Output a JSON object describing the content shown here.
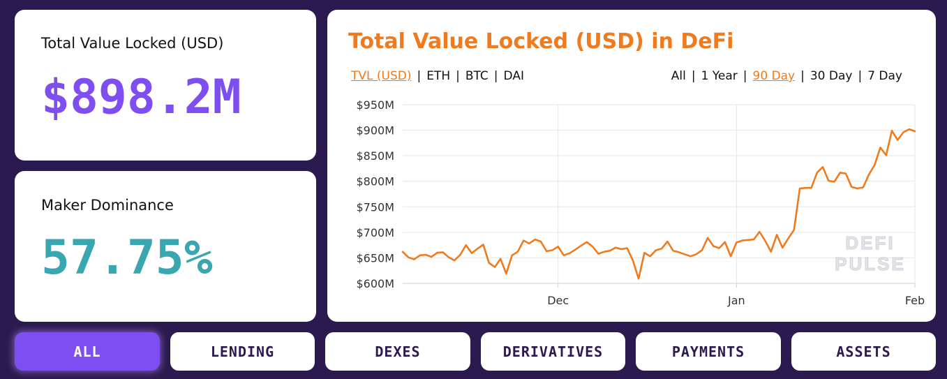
{
  "stats": {
    "tvl_label": "Total Value Locked (USD)",
    "tvl_value": "$898.2M",
    "tvl_color": "#7f4ef0",
    "dominance_label": "Maker Dominance",
    "dominance_value": "57.75%",
    "dominance_color": "#3aa6b0"
  },
  "chart_panel": {
    "title": "Total Value Locked (USD) in DeFi",
    "accent_color": "#f07b1f",
    "metric_tabs": [
      {
        "label": "TVL (USD)",
        "active": true
      },
      {
        "label": "ETH",
        "active": false
      },
      {
        "label": "BTC",
        "active": false
      },
      {
        "label": "DAI",
        "active": false
      }
    ],
    "range_tabs": [
      {
        "label": "All",
        "active": false
      },
      {
        "label": "1 Year",
        "active": false
      },
      {
        "label": "90 Day",
        "active": true
      },
      {
        "label": "30 Day",
        "active": false
      },
      {
        "label": "7 Day",
        "active": false
      }
    ],
    "watermark_line1": "DEFI",
    "watermark_line2": "PULSE"
  },
  "chart_data": {
    "type": "line",
    "title": "",
    "xlabel": "",
    "ylabel": "",
    "ylim": [
      600,
      950
    ],
    "y_ticks": [
      950,
      900,
      850,
      800,
      750,
      700,
      650,
      600
    ],
    "y_tick_labels": [
      "$950M",
      "$900M",
      "$850M",
      "$800M",
      "$750M",
      "$700M",
      "$650M",
      "$600M"
    ],
    "x_tick_labels": [
      {
        "label": "Dec",
        "index": 27
      },
      {
        "label": "Jan",
        "index": 58
      },
      {
        "label": "Feb",
        "index": 89
      }
    ],
    "grid": true,
    "series": [
      {
        "values": [
          662,
          651,
          647,
          655,
          656,
          652,
          660,
          661,
          651,
          645,
          656,
          675,
          659,
          668,
          676,
          640,
          632,
          648,
          619,
          655,
          662,
          684,
          678,
          686,
          682,
          663,
          665,
          672,
          655,
          659,
          666,
          674,
          681,
          672,
          658,
          662,
          664,
          670,
          667,
          669,
          645,
          609,
          660,
          653,
          665,
          668,
          682,
          664,
          661,
          657,
          653,
          657,
          665,
          689,
          673,
          669,
          681,
          653,
          680,
          684,
          685,
          686,
          701,
          683,
          662,
          695,
          670,
          688,
          705,
          786,
          787,
          787,
          817,
          828,
          801,
          799,
          817,
          815,
          789,
          786,
          788,
          813,
          832,
          866,
          851,
          899,
          881,
          896,
          902,
          898
        ]
      }
    ]
  },
  "categories": [
    {
      "label": "ALL",
      "active": true
    },
    {
      "label": "LENDING",
      "active": false
    },
    {
      "label": "DEXES",
      "active": false
    },
    {
      "label": "DERIVATIVES",
      "active": false
    },
    {
      "label": "PAYMENTS",
      "active": false
    },
    {
      "label": "ASSETS",
      "active": false
    }
  ]
}
